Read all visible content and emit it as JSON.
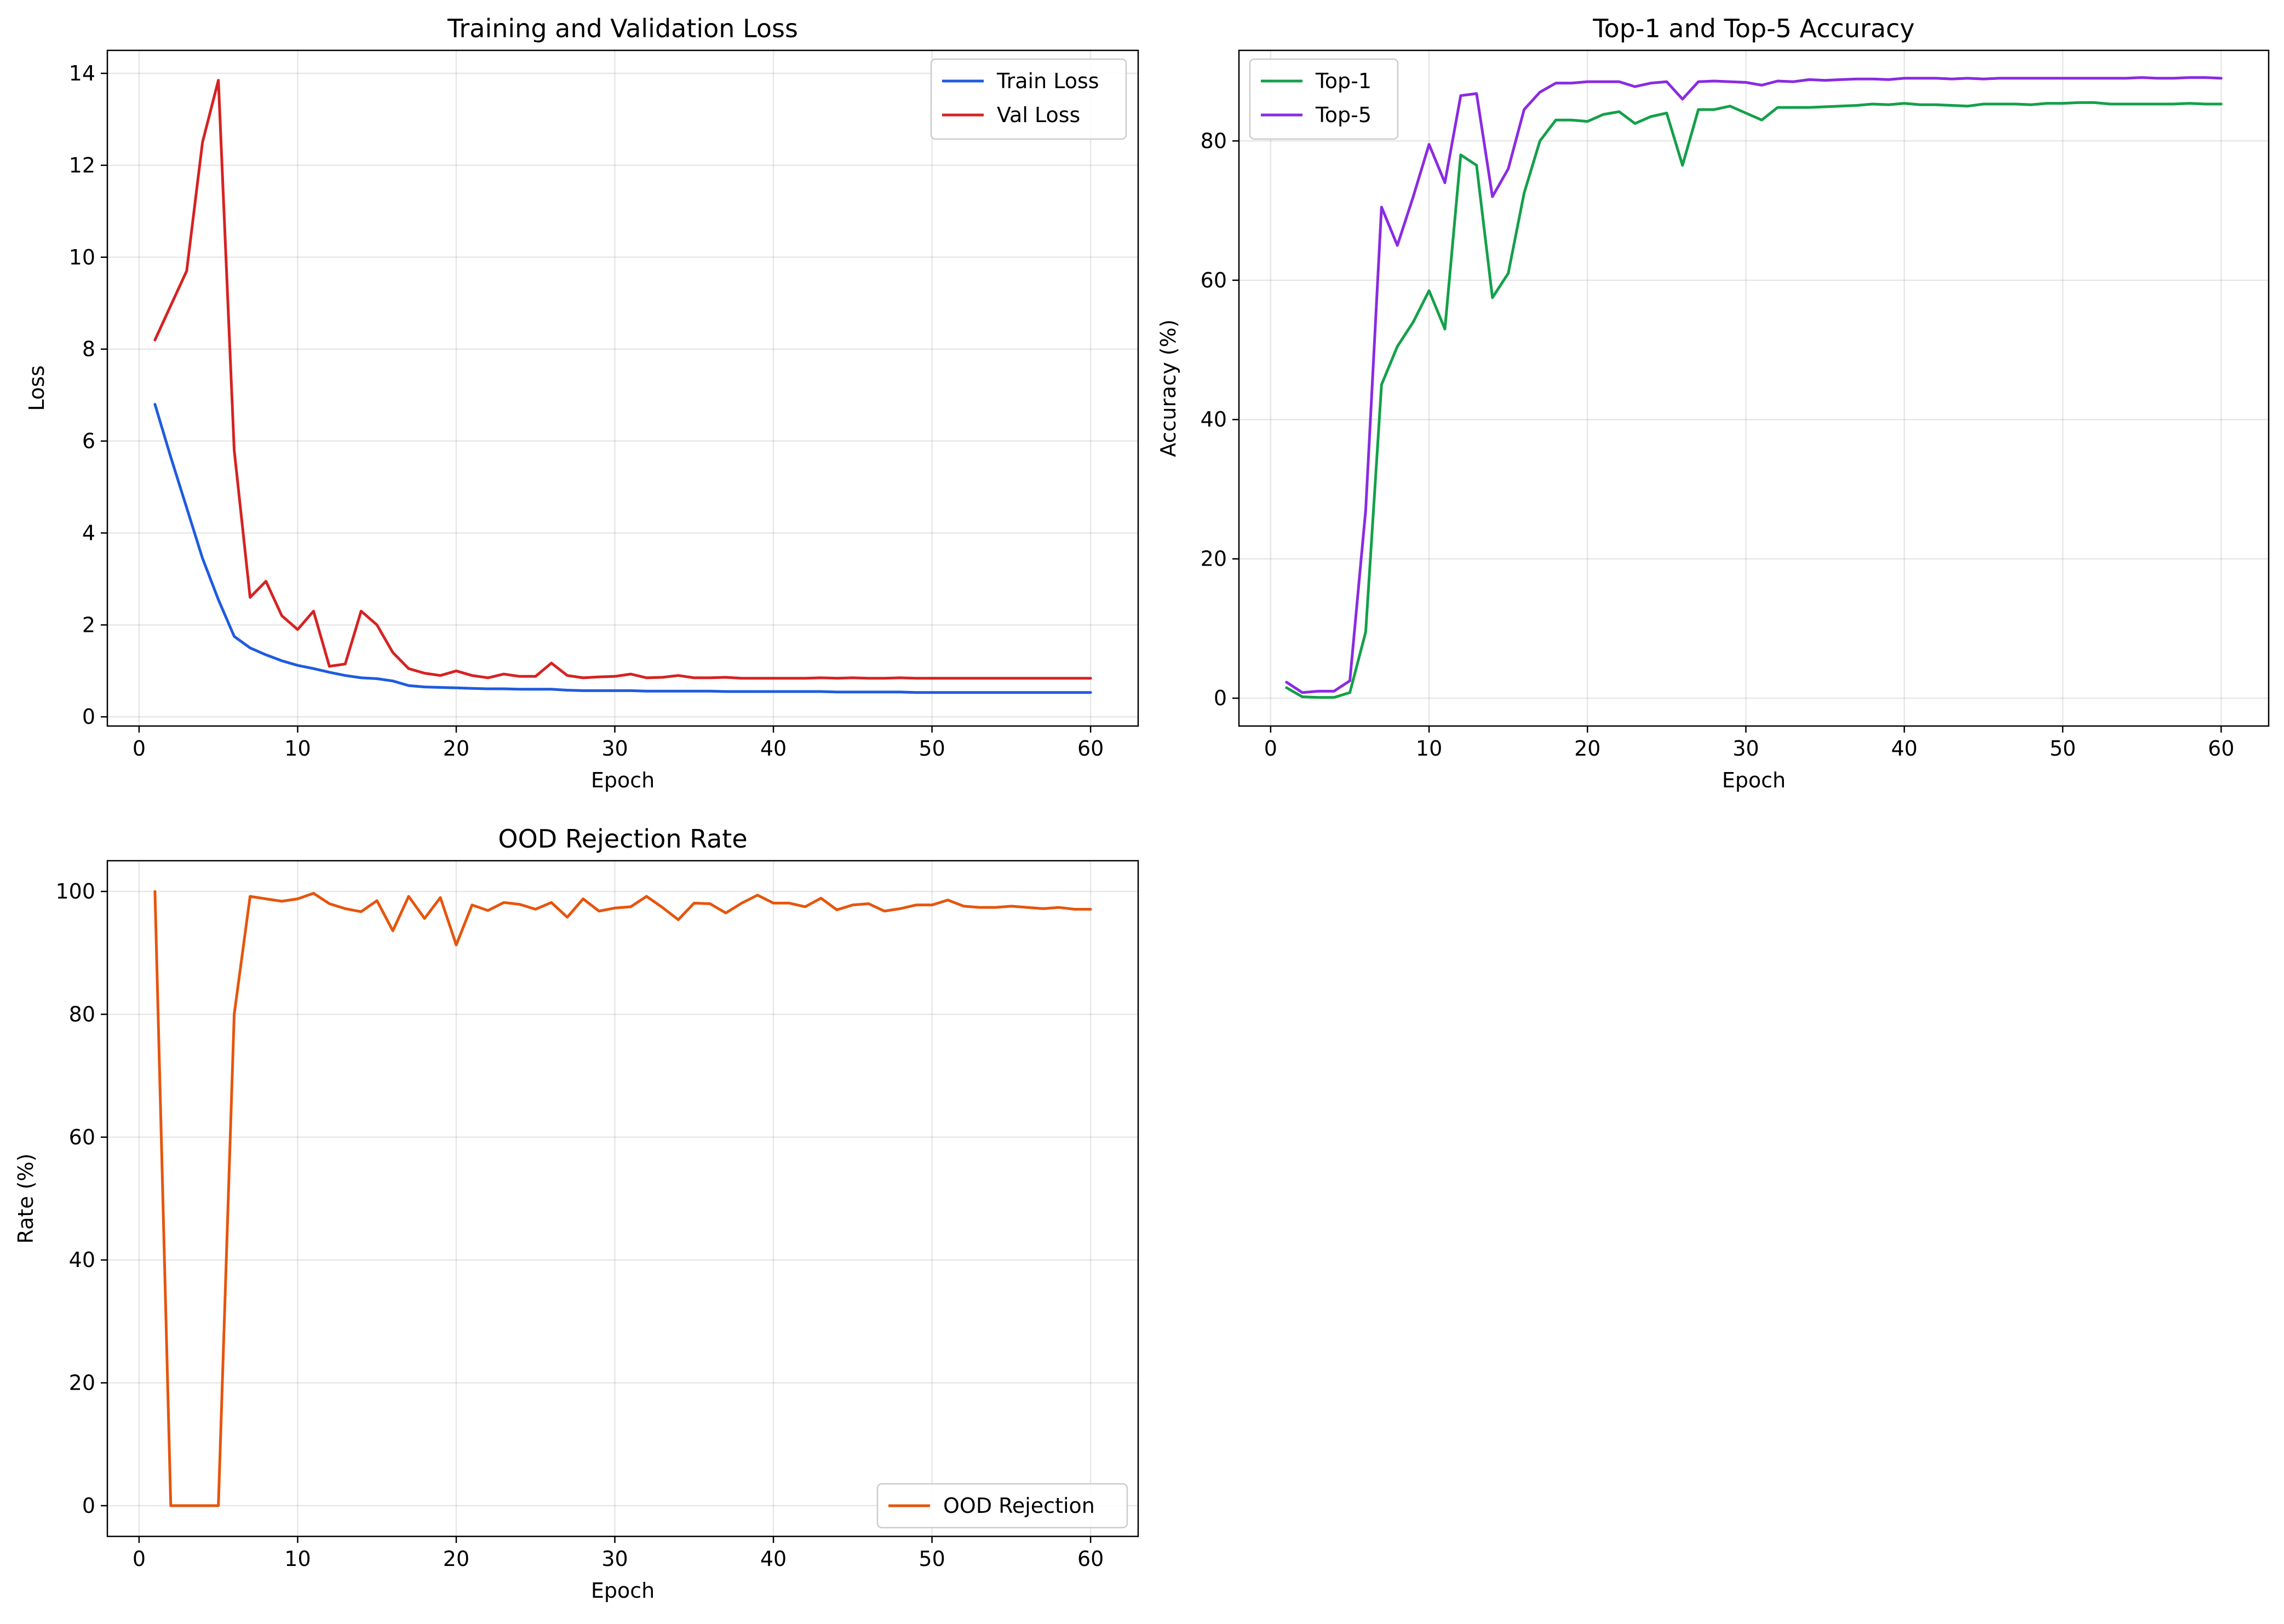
{
  "chart_data": [
    {
      "type": "line",
      "title": "Training and Validation Loss",
      "xlabel": "Epoch",
      "ylabel": "Loss",
      "xlim": [
        -2,
        63
      ],
      "ylim": [
        -0.2,
        14.5
      ],
      "xticks": [
        0,
        10,
        20,
        30,
        40,
        50,
        60
      ],
      "yticks": [
        0,
        2,
        4,
        6,
        8,
        10,
        12,
        14
      ],
      "grid": true,
      "legend": "top-right",
      "x": [
        1,
        2,
        3,
        4,
        5,
        6,
        7,
        8,
        9,
        10,
        11,
        12,
        13,
        14,
        15,
        16,
        17,
        18,
        19,
        20,
        21,
        22,
        23,
        24,
        25,
        26,
        27,
        28,
        29,
        30,
        31,
        32,
        33,
        34,
        35,
        36,
        37,
        38,
        39,
        40,
        41,
        42,
        43,
        44,
        45,
        46,
        47,
        48,
        49,
        50,
        51,
        52,
        53,
        54,
        55,
        56,
        57,
        58,
        59,
        60
      ],
      "series": [
        {
          "name": "Train Loss",
          "color": "#1f5bdf",
          "values": [
            6.8,
            5.65,
            4.55,
            3.45,
            2.55,
            1.75,
            1.5,
            1.35,
            1.22,
            1.12,
            1.05,
            0.97,
            0.9,
            0.85,
            0.83,
            0.78,
            0.68,
            0.65,
            0.64,
            0.63,
            0.62,
            0.61,
            0.61,
            0.6,
            0.6,
            0.6,
            0.58,
            0.57,
            0.57,
            0.57,
            0.57,
            0.56,
            0.56,
            0.56,
            0.56,
            0.56,
            0.55,
            0.55,
            0.55,
            0.55,
            0.55,
            0.55,
            0.55,
            0.54,
            0.54,
            0.54,
            0.54,
            0.54,
            0.53,
            0.53,
            0.53,
            0.53,
            0.53,
            0.53,
            0.53,
            0.53,
            0.53,
            0.53,
            0.53,
            0.53
          ]
        },
        {
          "name": "Val Loss",
          "color": "#d62222",
          "values": [
            8.2,
            8.95,
            9.7,
            12.5,
            13.85,
            5.8,
            2.6,
            2.95,
            2.2,
            1.9,
            2.3,
            1.1,
            1.15,
            2.3,
            2.0,
            1.4,
            1.05,
            0.95,
            0.9,
            1.0,
            0.9,
            0.85,
            0.93,
            0.88,
            0.88,
            1.17,
            0.9,
            0.85,
            0.87,
            0.88,
            0.93,
            0.85,
            0.86,
            0.9,
            0.85,
            0.85,
            0.86,
            0.84,
            0.84,
            0.84,
            0.84,
            0.84,
            0.85,
            0.84,
            0.85,
            0.84,
            0.84,
            0.85,
            0.84,
            0.84,
            0.84,
            0.84,
            0.84,
            0.84,
            0.84,
            0.84,
            0.84,
            0.84,
            0.84,
            0.84
          ]
        }
      ]
    },
    {
      "type": "line",
      "title": "Top-1 and Top-5 Accuracy",
      "xlabel": "Epoch",
      "ylabel": "Accuracy (%)",
      "xlim": [
        -2,
        63
      ],
      "ylim": [
        -4,
        93
      ],
      "xticks": [
        0,
        10,
        20,
        30,
        40,
        50,
        60
      ],
      "yticks": [
        0,
        20,
        40,
        60,
        80
      ],
      "grid": true,
      "legend": "top-left",
      "x": [
        1,
        2,
        3,
        4,
        5,
        6,
        7,
        8,
        9,
        10,
        11,
        12,
        13,
        14,
        15,
        16,
        17,
        18,
        19,
        20,
        21,
        22,
        23,
        24,
        25,
        26,
        27,
        28,
        29,
        30,
        31,
        32,
        33,
        34,
        35,
        36,
        37,
        38,
        39,
        40,
        41,
        42,
        43,
        44,
        45,
        46,
        47,
        48,
        49,
        50,
        51,
        52,
        53,
        54,
        55,
        56,
        57,
        58,
        59,
        60
      ],
      "series": [
        {
          "name": "Top-1",
          "color": "#14a04a",
          "values": [
            1.5,
            0.2,
            0.1,
            0.1,
            0.8,
            9.5,
            45,
            50.5,
            54,
            58.5,
            53,
            78,
            76.5,
            57.5,
            61,
            72.5,
            80,
            83,
            83,
            82.8,
            83.8,
            84.2,
            82.5,
            83.5,
            84,
            76.5,
            84.5,
            84.5,
            85,
            84,
            83,
            84.8,
            84.8,
            84.8,
            84.9,
            85,
            85.1,
            85.3,
            85.2,
            85.4,
            85.2,
            85.2,
            85.1,
            85,
            85.3,
            85.3,
            85.3,
            85.2,
            85.4,
            85.4,
            85.5,
            85.5,
            85.3,
            85.3,
            85.3,
            85.3,
            85.3,
            85.4,
            85.3,
            85.3
          ]
        },
        {
          "name": "Top-5",
          "color": "#8a2be2",
          "values": [
            2.3,
            0.8,
            1,
            1,
            2.5,
            27,
            70.5,
            65,
            72,
            79.5,
            74,
            86.5,
            86.8,
            72,
            76,
            84.5,
            87,
            88.3,
            88.3,
            88.5,
            88.5,
            88.5,
            87.8,
            88.3,
            88.5,
            86,
            88.5,
            88.6,
            88.5,
            88.4,
            88,
            88.6,
            88.5,
            88.8,
            88.7,
            88.8,
            88.9,
            88.9,
            88.8,
            89,
            89,
            89,
            88.9,
            89,
            88.9,
            89,
            89,
            89,
            89,
            89,
            89,
            89,
            89,
            89,
            89.1,
            89,
            89,
            89.1,
            89.1,
            89
          ]
        }
      ]
    },
    {
      "type": "line",
      "title": "OOD Rejection Rate",
      "xlabel": "Epoch",
      "ylabel": "Rate (%)",
      "xlim": [
        -2,
        63
      ],
      "ylim": [
        -5,
        105
      ],
      "xticks": [
        0,
        10,
        20,
        30,
        40,
        50,
        60
      ],
      "yticks": [
        0,
        20,
        40,
        60,
        80,
        100
      ],
      "grid": true,
      "legend": "bottom-right",
      "x": [
        1,
        2,
        3,
        4,
        5,
        6,
        7,
        8,
        9,
        10,
        11,
        12,
        13,
        14,
        15,
        16,
        17,
        18,
        19,
        20,
        21,
        22,
        23,
        24,
        25,
        26,
        27,
        28,
        29,
        30,
        31,
        32,
        33,
        34,
        35,
        36,
        37,
        38,
        39,
        40,
        41,
        42,
        43,
        44,
        45,
        46,
        47,
        48,
        49,
        50,
        51,
        52,
        53,
        54,
        55,
        56,
        57,
        58,
        59,
        60
      ],
      "series": [
        {
          "name": "OOD Rejection",
          "color": "#e6550d",
          "values": [
            100,
            0,
            0,
            0,
            0,
            80,
            99.2,
            98.8,
            98.4,
            98.8,
            99.7,
            98,
            97.2,
            96.7,
            98.5,
            93.6,
            99.2,
            95.6,
            99,
            91.3,
            97.8,
            96.9,
            98.2,
            97.9,
            97.1,
            98.2,
            95.8,
            98.8,
            96.8,
            97.3,
            97.5,
            99.2,
            97.4,
            95.4,
            98.1,
            98,
            96.5,
            98.1,
            99.4,
            98.1,
            98.1,
            97.5,
            98.9,
            97,
            97.8,
            98,
            96.8,
            97.2,
            97.8,
            97.8,
            98.6,
            97.6,
            97.4,
            97.4,
            97.6,
            97.4,
            97.2,
            97.4,
            97.1,
            97.1
          ]
        }
      ]
    }
  ]
}
